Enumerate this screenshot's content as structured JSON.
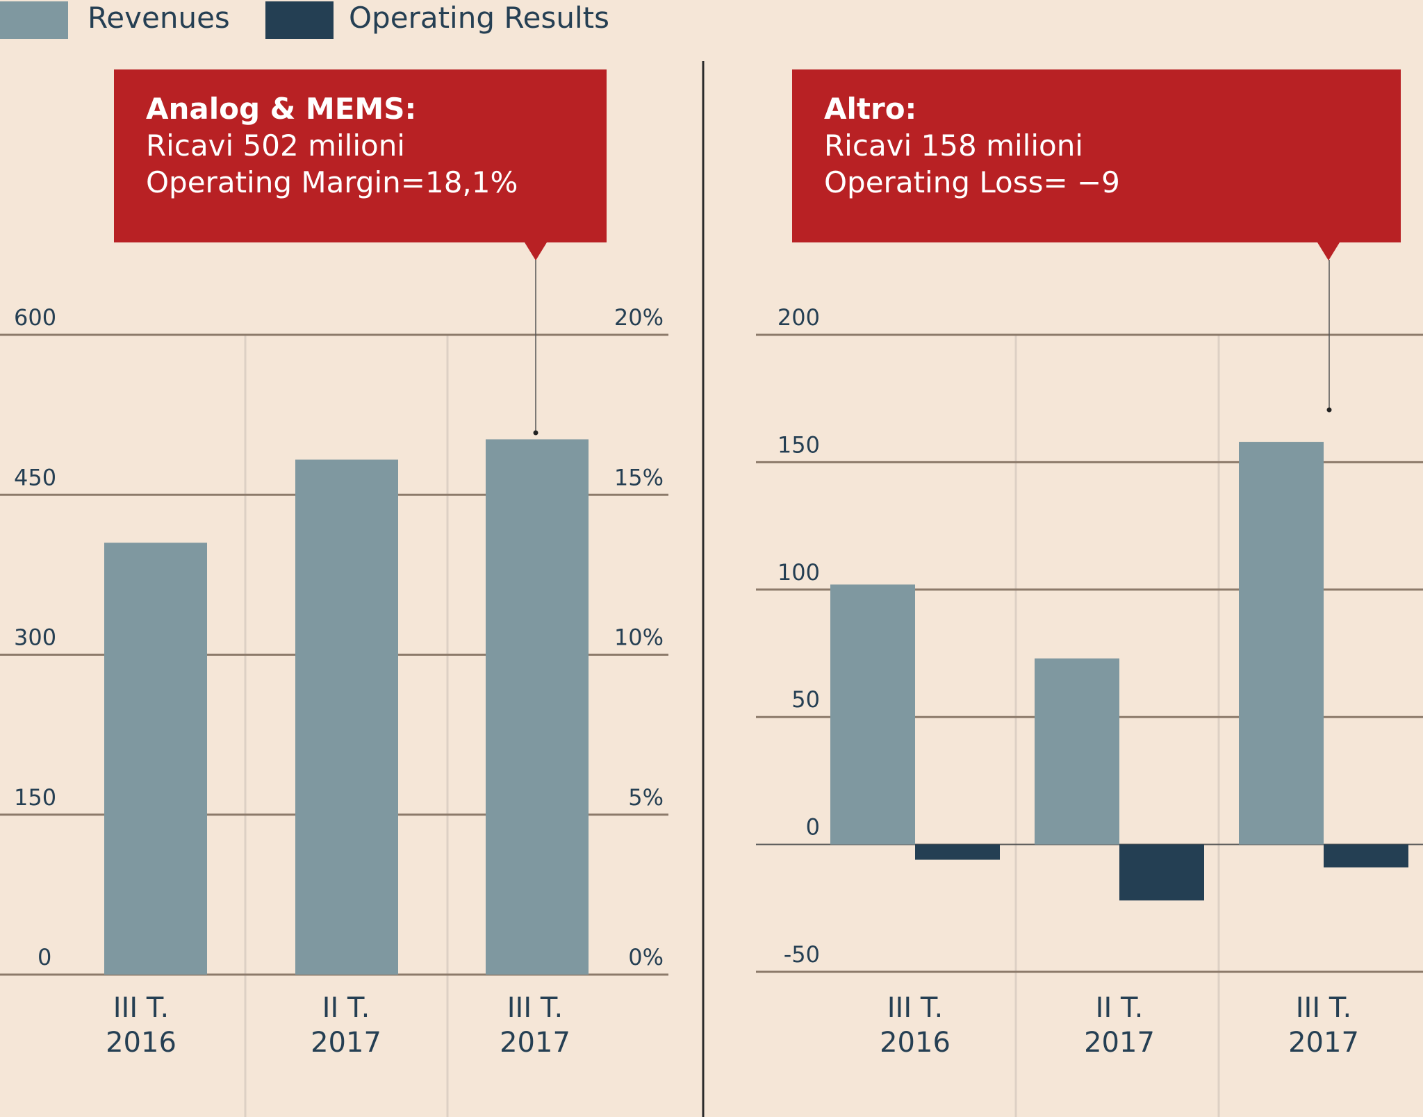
{
  "legend": [
    {
      "label": "Revenues",
      "color": "#7f98a0"
    },
    {
      "label": "Operating Results",
      "color": "#243f53"
    }
  ],
  "callouts": [
    {
      "title": "Analog & MEMS:",
      "line1": "Ricavi 502 milioni",
      "line2": "Operating Margin=18,1%"
    },
    {
      "title": "Altro:",
      "line1": "Ricavi 158 milioni",
      "line2": "Operating Loss= −9"
    }
  ],
  "chart_data": [
    {
      "type": "bar",
      "title": "Analog & MEMS",
      "categories": [
        [
          "III T.",
          "2016"
        ],
        [
          "II T.",
          "2017"
        ],
        [
          "III T.",
          "2017"
        ]
      ],
      "series": [
        {
          "name": "Revenues",
          "values": [
            405,
            483,
            502
          ]
        }
      ],
      "ylim": [
        0,
        600
      ],
      "yticks": [
        0,
        150,
        300,
        450,
        600
      ],
      "ytick_labels": [
        "0",
        "150",
        "300",
        "450",
        "600"
      ],
      "y2ticks": [
        "0%",
        "5%",
        "10%",
        "15%",
        "20%"
      ],
      "y2lim": [
        0,
        20
      ],
      "grid": true
    },
    {
      "type": "bar",
      "title": "Altro",
      "categories": [
        [
          "III T.",
          "2016"
        ],
        [
          "II T.",
          "2017"
        ],
        [
          "III T.",
          "2017"
        ]
      ],
      "series": [
        {
          "name": "Revenues",
          "values": [
            102,
            73,
            158
          ]
        },
        {
          "name": "Operating Results",
          "values": [
            -6,
            -22,
            -9
          ]
        }
      ],
      "ylim": [
        -50,
        200
      ],
      "yticks": [
        -50,
        0,
        50,
        100,
        150,
        200
      ],
      "ytick_labels": [
        "-50",
        "0",
        "50",
        "100",
        "150",
        "200"
      ],
      "grid": true
    }
  ]
}
